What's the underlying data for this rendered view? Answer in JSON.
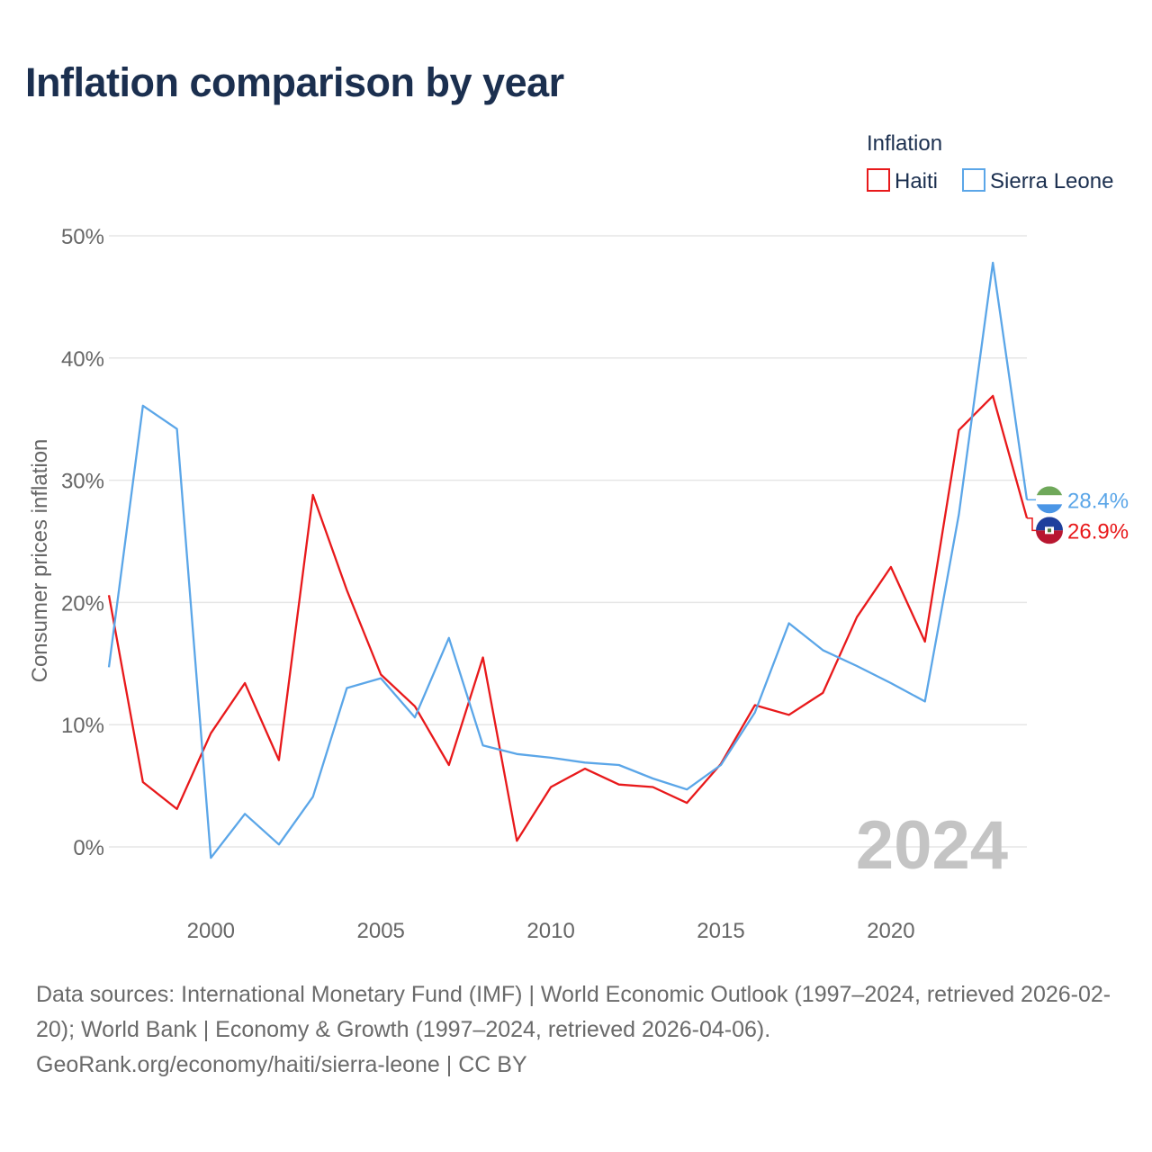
{
  "title": "Inflation comparison by year",
  "chart_data": {
    "type": "line",
    "title": "Inflation comparison by year",
    "ylabel": "Consumer prices inflation",
    "xlabel": "",
    "legend_title": "Inflation",
    "legend_position": "top-right",
    "xlim": [
      1997,
      2024
    ],
    "ylim": [
      -5,
      52
    ],
    "y_ticks": [
      0,
      10,
      20,
      30,
      40,
      50
    ],
    "y_tick_labels": [
      "0%",
      "10%",
      "20%",
      "30%",
      "40%",
      "50%"
    ],
    "x_ticks": [
      2000,
      2005,
      2010,
      2015,
      2020
    ],
    "x_tick_labels": [
      "2000",
      "2005",
      "2010",
      "2015",
      "2020"
    ],
    "grid": true,
    "year_watermark": "2024",
    "x": [
      1997,
      1998,
      1999,
      2000,
      2001,
      2002,
      2003,
      2004,
      2005,
      2006,
      2007,
      2008,
      2009,
      2010,
      2011,
      2012,
      2013,
      2014,
      2015,
      2016,
      2017,
      2018,
      2019,
      2020,
      2021,
      2022,
      2023,
      2024
    ],
    "series": [
      {
        "name": "Haiti",
        "color": "#e8191b",
        "values": [
          20.6,
          5.3,
          3.1,
          9.3,
          13.4,
          7.1,
          28.8,
          21.0,
          14.1,
          11.5,
          6.7,
          15.5,
          0.5,
          4.9,
          6.4,
          5.1,
          4.9,
          3.6,
          6.8,
          11.6,
          10.8,
          12.6,
          18.8,
          22.9,
          16.8,
          34.1,
          36.9,
          26.9
        ],
        "end_label": "26.9%"
      },
      {
        "name": "Sierra Leone",
        "color": "#5ba6e8",
        "values": [
          14.7,
          36.1,
          34.2,
          -0.9,
          2.7,
          0.2,
          4.1,
          13.0,
          13.8,
          10.6,
          17.1,
          8.3,
          7.6,
          7.3,
          6.9,
          6.7,
          5.6,
          4.7,
          6.7,
          11.0,
          18.3,
          16.1,
          14.8,
          13.4,
          11.9,
          27.2,
          47.8,
          28.4
        ],
        "end_label": "28.4%"
      }
    ]
  },
  "footer": {
    "line1": "Data sources: International Monetary Fund (IMF) | World Economic Outlook (1997–2024, retrieved 2026-02-20); World Bank | Economy & Growth (1997–2024, retrieved 2026-04-06).",
    "line2": "GeoRank.org/economy/haiti/sierra-leone | CC BY"
  }
}
